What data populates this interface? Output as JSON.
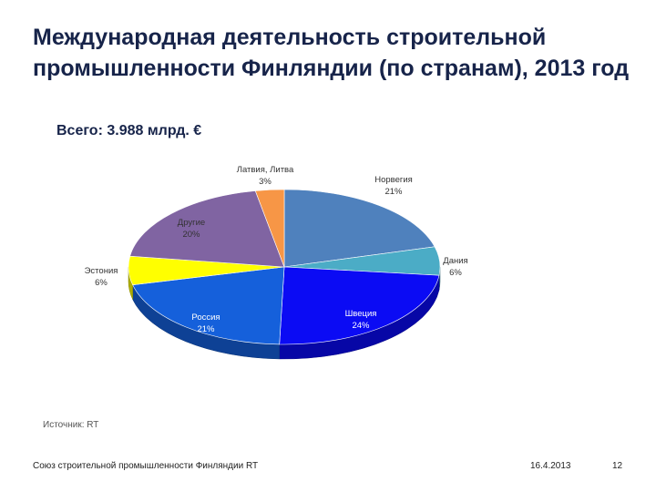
{
  "slide": {
    "title": "Международная деятельность строительной промышленности Финляндии (по странам), 2013 год",
    "subtitle": "Всего: 3.988 млрд. €",
    "source": "Источник: RT",
    "footer_org": "Союз строительной промышленности Финляндии RT",
    "footer_date": "16.4.2013",
    "page_number": "12"
  },
  "chart_data": {
    "type": "pie",
    "title": "",
    "three_d": true,
    "legend": "none",
    "slices": [
      {
        "label": "Норвегия",
        "value": 21,
        "value_label": "21%",
        "color": "#4f81bd",
        "label_color": "#333333"
      },
      {
        "label": "Дания",
        "value": 6,
        "value_label": "6%",
        "color": "#4bacc6",
        "label_color": "#333333"
      },
      {
        "label": "Швеция",
        "value": 24,
        "value_label": "24%",
        "color": "#0b0bf4",
        "label_color": "#ffffff"
      },
      {
        "label": "Россия",
        "value": 21,
        "value_label": "21%",
        "color": "#1560db",
        "label_color": "#ffffff"
      },
      {
        "label": "Эстония",
        "value": 6,
        "value_label": "6%",
        "color": "#ffff00",
        "label_color": "#333333"
      },
      {
        "label": "Другие",
        "value": 20,
        "value_label": "20%",
        "color": "#8064a2",
        "label_color": "#333333"
      },
      {
        "label": "Латвия, Литва",
        "value": 3,
        "value_label": "3%",
        "color": "#f79646",
        "label_color": "#333333"
      }
    ]
  }
}
